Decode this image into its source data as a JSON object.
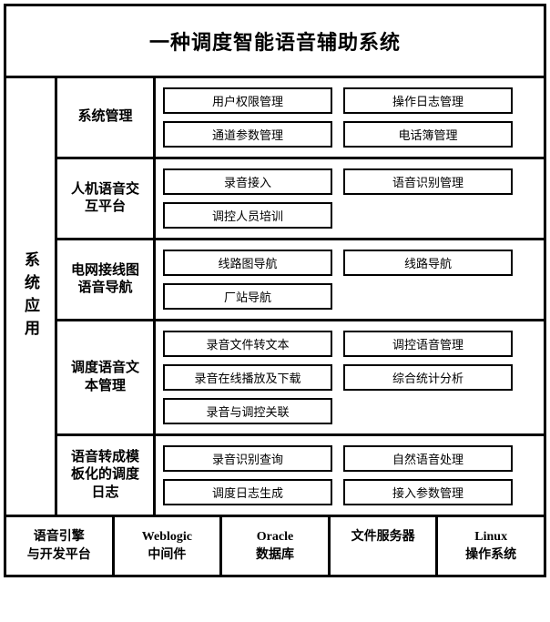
{
  "title": "一种调度智能语音辅助系统",
  "side_label": "系统应用",
  "modules": [
    {
      "label": "系统管理",
      "items": [
        "用户权限管理",
        "操作日志管理",
        "通道参数管理",
        "电话簿管理"
      ]
    },
    {
      "label": "人机语音交\n互平台",
      "items": [
        "录音接入",
        "语音识别管理",
        "调控人员培训"
      ]
    },
    {
      "label": "电网接线图\n语音导航",
      "items": [
        "线路图导航",
        "线路导航",
        "厂站导航"
      ]
    },
    {
      "label": "调度语音文\n本管理",
      "items": [
        "录音文件转文本",
        "调控语音管理",
        "录音在线播放及下载",
        "综合统计分析",
        "录音与调控关联"
      ]
    },
    {
      "label": "语音转成模\n板化的调度\n日志",
      "items": [
        "录音识别查询",
        "自然语音处理",
        "调度日志生成",
        "接入参数管理"
      ]
    }
  ],
  "bottom": [
    "语音引擎\n与开发平台",
    "Weblogic\n中间件",
    "Oracle\n数据库",
    "文件服务器",
    "Linux\n操作系统"
  ]
}
